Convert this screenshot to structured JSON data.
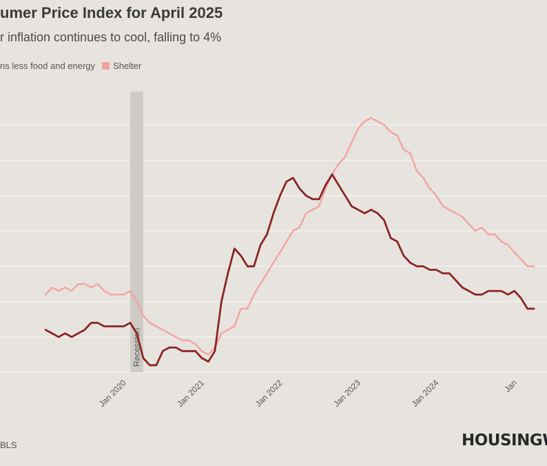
{
  "header": {
    "title": "umer Price Index for April 2025",
    "subtitle": "r inflation continues to cool, falling to 4%"
  },
  "legend": {
    "items": [
      {
        "label": "ns less food and energy",
        "color": "#8b2323"
      },
      {
        "label": "Shelter",
        "color": "#f4a3a0"
      }
    ]
  },
  "footer": {
    "source": "BLS",
    "logo": "HOUSINGW"
  },
  "chart_data": {
    "type": "line",
    "title": "umer Price Index for April 2025",
    "x_ticks": [
      "Jan 2020",
      "Jan 2021",
      "Jan 2022",
      "Jan 2023",
      "Jan 2024",
      "Jan"
    ],
    "x_range": [
      "2019-01",
      "2025-04"
    ],
    "y_range": [
      1,
      9
    ],
    "gridlines": [
      1,
      2,
      3,
      4,
      5,
      6,
      7,
      8
    ],
    "grid": "horizontal",
    "recession": {
      "label": "Recession",
      "start": "2020-02",
      "end": "2020-04"
    },
    "series": [
      {
        "name": "ns less food and energy",
        "color": "#8b2323",
        "points": [
          [
            "2019-01",
            2.2
          ],
          [
            "2019-02",
            2.1
          ],
          [
            "2019-03",
            2.0
          ],
          [
            "2019-04",
            2.1
          ],
          [
            "2019-05",
            2.0
          ],
          [
            "2019-06",
            2.1
          ],
          [
            "2019-07",
            2.2
          ],
          [
            "2019-08",
            2.4
          ],
          [
            "2019-09",
            2.4
          ],
          [
            "2019-10",
            2.3
          ],
          [
            "2019-11",
            2.3
          ],
          [
            "2019-12",
            2.3
          ],
          [
            "2020-01",
            2.3
          ],
          [
            "2020-02",
            2.4
          ],
          [
            "2020-03",
            2.1
          ],
          [
            "2020-04",
            1.4
          ],
          [
            "2020-05",
            1.2
          ],
          [
            "2020-06",
            1.2
          ],
          [
            "2020-07",
            1.6
          ],
          [
            "2020-08",
            1.7
          ],
          [
            "2020-09",
            1.7
          ],
          [
            "2020-10",
            1.6
          ],
          [
            "2020-11",
            1.6
          ],
          [
            "2020-12",
            1.6
          ],
          [
            "2021-01",
            1.4
          ],
          [
            "2021-02",
            1.3
          ],
          [
            "2021-03",
            1.6
          ],
          [
            "2021-04",
            3.0
          ],
          [
            "2021-05",
            3.8
          ],
          [
            "2021-06",
            4.5
          ],
          [
            "2021-07",
            4.3
          ],
          [
            "2021-08",
            4.0
          ],
          [
            "2021-09",
            4.0
          ],
          [
            "2021-10",
            4.6
          ],
          [
            "2021-11",
            4.9
          ],
          [
            "2021-12",
            5.5
          ],
          [
            "2022-01",
            6.0
          ],
          [
            "2022-02",
            6.4
          ],
          [
            "2022-03",
            6.5
          ],
          [
            "2022-04",
            6.2
          ],
          [
            "2022-05",
            6.0
          ],
          [
            "2022-06",
            5.9
          ],
          [
            "2022-07",
            5.9
          ],
          [
            "2022-08",
            6.3
          ],
          [
            "2022-09",
            6.6
          ],
          [
            "2022-10",
            6.3
          ],
          [
            "2022-11",
            6.0
          ],
          [
            "2022-12",
            5.7
          ],
          [
            "2023-01",
            5.6
          ],
          [
            "2023-02",
            5.5
          ],
          [
            "2023-03",
            5.6
          ],
          [
            "2023-04",
            5.5
          ],
          [
            "2023-05",
            5.3
          ],
          [
            "2023-06",
            4.8
          ],
          [
            "2023-07",
            4.7
          ],
          [
            "2023-08",
            4.3
          ],
          [
            "2023-09",
            4.1
          ],
          [
            "2023-10",
            4.0
          ],
          [
            "2023-11",
            4.0
          ],
          [
            "2023-12",
            3.9
          ],
          [
            "2024-01",
            3.9
          ],
          [
            "2024-02",
            3.8
          ],
          [
            "2024-03",
            3.8
          ],
          [
            "2024-04",
            3.6
          ],
          [
            "2024-05",
            3.4
          ],
          [
            "2024-06",
            3.3
          ],
          [
            "2024-07",
            3.2
          ],
          [
            "2024-08",
            3.2
          ],
          [
            "2024-09",
            3.3
          ],
          [
            "2024-10",
            3.3
          ],
          [
            "2024-11",
            3.3
          ],
          [
            "2024-12",
            3.2
          ],
          [
            "2025-01",
            3.3
          ],
          [
            "2025-02",
            3.1
          ],
          [
            "2025-03",
            2.8
          ],
          [
            "2025-04",
            2.8
          ]
        ]
      },
      {
        "name": "Shelter",
        "color": "#f4a3a0",
        "points": [
          [
            "2019-01",
            3.2
          ],
          [
            "2019-02",
            3.4
          ],
          [
            "2019-03",
            3.3
          ],
          [
            "2019-04",
            3.4
          ],
          [
            "2019-05",
            3.3
          ],
          [
            "2019-06",
            3.5
          ],
          [
            "2019-07",
            3.5
          ],
          [
            "2019-08",
            3.4
          ],
          [
            "2019-09",
            3.5
          ],
          [
            "2019-10",
            3.3
          ],
          [
            "2019-11",
            3.2
          ],
          [
            "2019-12",
            3.2
          ],
          [
            "2020-01",
            3.2
          ],
          [
            "2020-02",
            3.3
          ],
          [
            "2020-03",
            3.0
          ],
          [
            "2020-04",
            2.6
          ],
          [
            "2020-05",
            2.4
          ],
          [
            "2020-06",
            2.3
          ],
          [
            "2020-07",
            2.2
          ],
          [
            "2020-08",
            2.1
          ],
          [
            "2020-09",
            2.0
          ],
          [
            "2020-10",
            1.9
          ],
          [
            "2020-11",
            1.9
          ],
          [
            "2020-12",
            1.8
          ],
          [
            "2021-01",
            1.6
          ],
          [
            "2021-02",
            1.5
          ],
          [
            "2021-03",
            1.7
          ],
          [
            "2021-04",
            2.1
          ],
          [
            "2021-05",
            2.2
          ],
          [
            "2021-06",
            2.3
          ],
          [
            "2021-07",
            2.8
          ],
          [
            "2021-08",
            2.8
          ],
          [
            "2021-09",
            3.2
          ],
          [
            "2021-10",
            3.5
          ],
          [
            "2021-11",
            3.8
          ],
          [
            "2021-12",
            4.1
          ],
          [
            "2022-01",
            4.4
          ],
          [
            "2022-02",
            4.7
          ],
          [
            "2022-03",
            5.0
          ],
          [
            "2022-04",
            5.1
          ],
          [
            "2022-05",
            5.5
          ],
          [
            "2022-06",
            5.6
          ],
          [
            "2022-07",
            5.7
          ],
          [
            "2022-08",
            6.2
          ],
          [
            "2022-09",
            6.6
          ],
          [
            "2022-10",
            6.9
          ],
          [
            "2022-11",
            7.1
          ],
          [
            "2022-12",
            7.5
          ],
          [
            "2023-01",
            7.9
          ],
          [
            "2023-02",
            8.1
          ],
          [
            "2023-03",
            8.2
          ],
          [
            "2023-04",
            8.1
          ],
          [
            "2023-05",
            8.0
          ],
          [
            "2023-06",
            7.8
          ],
          [
            "2023-07",
            7.7
          ],
          [
            "2023-08",
            7.3
          ],
          [
            "2023-09",
            7.2
          ],
          [
            "2023-10",
            6.7
          ],
          [
            "2023-11",
            6.5
          ],
          [
            "2023-12",
            6.2
          ],
          [
            "2024-01",
            6.0
          ],
          [
            "2024-02",
            5.7
          ],
          [
            "2024-03",
            5.6
          ],
          [
            "2024-04",
            5.5
          ],
          [
            "2024-05",
            5.4
          ],
          [
            "2024-06",
            5.2
          ],
          [
            "2024-07",
            5.0
          ],
          [
            "2024-08",
            5.1
          ],
          [
            "2024-09",
            4.9
          ],
          [
            "2024-10",
            4.9
          ],
          [
            "2024-11",
            4.7
          ],
          [
            "2024-12",
            4.6
          ],
          [
            "2025-01",
            4.4
          ],
          [
            "2025-02",
            4.2
          ],
          [
            "2025-03",
            4.0
          ],
          [
            "2025-04",
            4.0
          ]
        ]
      }
    ]
  }
}
